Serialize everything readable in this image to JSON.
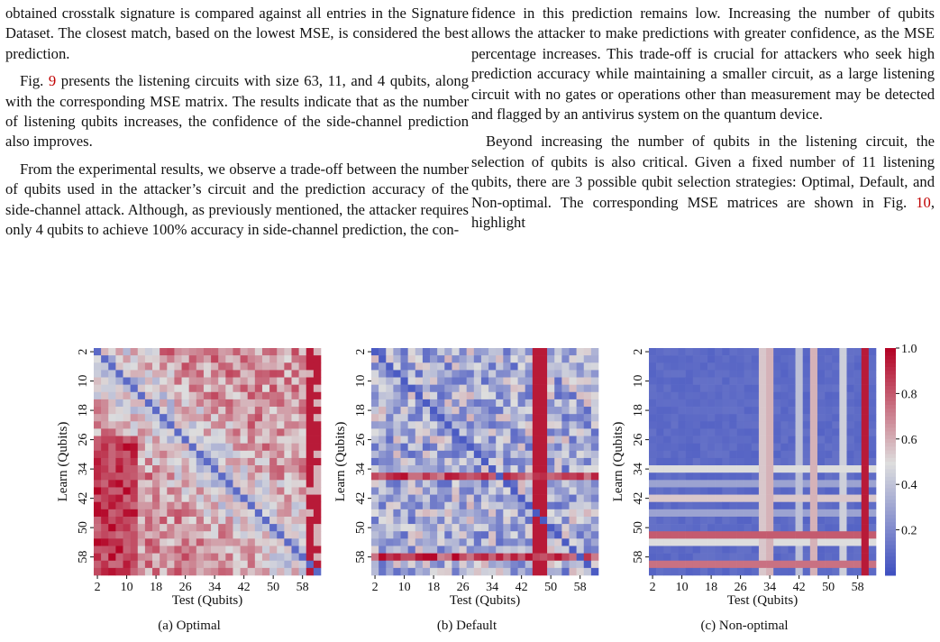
{
  "left_column": {
    "p1": "obtained crosstalk signature is compared against all entries in the Signature Dataset. The closest match, based on the lowest MSE, is considered the best prediction.",
    "p2_prefix": "Fig. ",
    "p2_ref": "9",
    "p2_text": " presents the listening circuits with size 63, 11, and 4 qubits, along with the corresponding MSE matrix. The results indicate that as the number of listening qubits increases, the confidence of the side-channel prediction also improves.",
    "p3": "From the experimental results, we observe a trade-off between the number of qubits used in the attacker’s circuit and the prediction accuracy of the side-channel attack. Although, as previously mentioned, the attacker requires only 4 qubits to achieve 100% accuracy in side-channel prediction, the con-"
  },
  "right_column": {
    "p1": "fidence in this prediction remains low. Increasing the number of qubits allows the attacker to make predictions with greater confidence, as the MSE percentage increases. This trade-off is crucial for attackers who seek high prediction accuracy while maintaining a smaller circuit, as a large listening circuit with no gates or operations other than measurement may be detected and flagged by an antivirus system on the quantum device.",
    "p2_text": "Beyond increasing the number of qubits in the listening circuit, the selection of qubits is also critical. Given a fixed number of 11 listening qubits, there are 3 possible qubit selection strategies: Optimal, Default, and Non-optimal. The corresponding MSE matrices are shown in Fig. ",
    "p2_ref": "10",
    "p2_suffix": ", highlight"
  },
  "chart_data": [
    {
      "type": "heatmap",
      "caption": "(a) Optimal",
      "xlabel": "Test (Qubits)",
      "ylabel": "Learn (Qubits)",
      "x_ticks": [
        "2",
        "10",
        "18",
        "26",
        "34",
        "42",
        "50",
        "58"
      ],
      "y_ticks": [
        "2",
        "10",
        "18",
        "26",
        "34",
        "42",
        "50",
        "58"
      ],
      "range": [
        1,
        63
      ],
      "value_range": [
        0,
        1
      ],
      "pattern": "optimal"
    },
    {
      "type": "heatmap",
      "caption": "(b) Default",
      "xlabel": "Test (Qubits)",
      "ylabel": "Learn (Qubits)",
      "x_ticks": [
        "2",
        "10",
        "18",
        "26",
        "34",
        "42",
        "50",
        "58"
      ],
      "y_ticks": [
        "2",
        "10",
        "18",
        "26",
        "34",
        "42",
        "50",
        "58"
      ],
      "range": [
        1,
        63
      ],
      "value_range": [
        0,
        1
      ],
      "pattern": "default"
    },
    {
      "type": "heatmap",
      "caption": "(c) Non-optimal",
      "xlabel": "Test (Qubits)",
      "ylabel": "Learn (Qubits)",
      "x_ticks": [
        "2",
        "10",
        "18",
        "26",
        "34",
        "42",
        "50",
        "58"
      ],
      "y_ticks": [
        "2",
        "10",
        "18",
        "26",
        "34",
        "42",
        "50",
        "58"
      ],
      "range": [
        1,
        63
      ],
      "value_range": [
        0,
        1
      ],
      "pattern": "nonoptimal"
    }
  ],
  "colorbar": {
    "ticks": [
      "0.2",
      "0.4",
      "0.6",
      "0.8",
      "1.0"
    ],
    "tick_values": [
      0.2,
      0.4,
      0.6,
      0.8,
      1.0
    ],
    "colormap": "coolwarm",
    "low_color": "#3b4cc0",
    "mid_color": "#dddddd",
    "high_color": "#b40426"
  }
}
